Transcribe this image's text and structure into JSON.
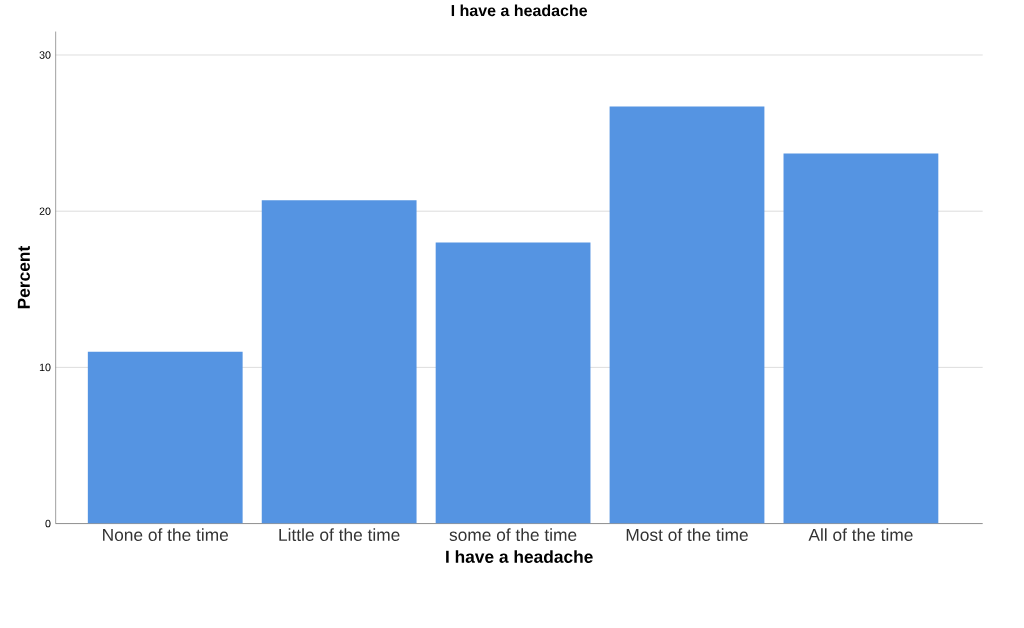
{
  "chart_data": {
    "type": "bar",
    "title": "I have a headache",
    "xlabel": "I have a headache",
    "ylabel": "Percent",
    "categories": [
      "None of the time",
      "Little of the time",
      "some of the time",
      "Most of the time",
      "All of the time"
    ],
    "values": [
      11.0,
      20.7,
      18.0,
      26.7,
      23.7
    ],
    "color": "#5594e2",
    "ylim": [
      0,
      31.5
    ],
    "yticks": [
      0,
      10,
      20,
      30
    ],
    "grid": "y"
  }
}
